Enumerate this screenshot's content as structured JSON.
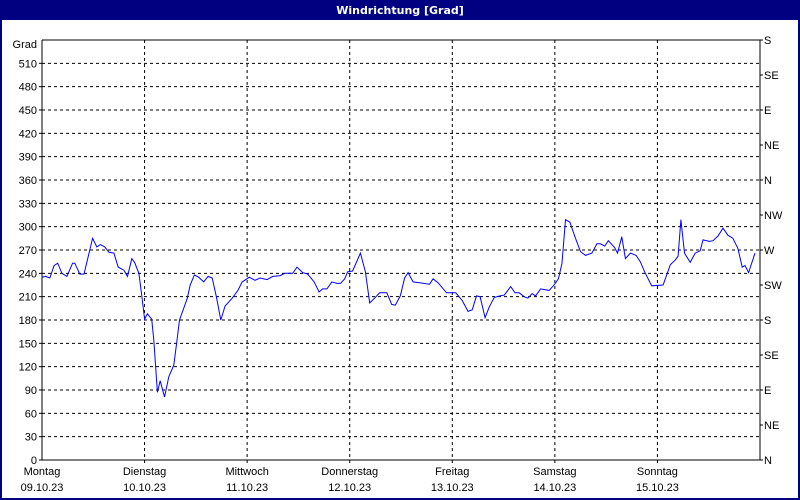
{
  "window": {
    "title": "Windrichtung [Grad]"
  },
  "colors": {
    "titlebar": "#000080",
    "series": "#0000ff",
    "grid": "#000000"
  },
  "chart_data": {
    "type": "line",
    "title": "Windrichtung [Grad]",
    "ylabel": "Grad",
    "ylim": [
      0,
      540
    ],
    "yticks": [
      0,
      30,
      60,
      90,
      120,
      150,
      180,
      210,
      240,
      270,
      300,
      330,
      360,
      390,
      420,
      450,
      480,
      510
    ],
    "right_axis": {
      "ticks": [
        {
          "value": 540,
          "label": "S"
        },
        {
          "value": 495,
          "label": "SE"
        },
        {
          "value": 450,
          "label": "E"
        },
        {
          "value": 405,
          "label": "NE"
        },
        {
          "value": 360,
          "label": "N"
        },
        {
          "value": 315,
          "label": "NW"
        },
        {
          "value": 270,
          "label": "W"
        },
        {
          "value": 225,
          "label": "SW"
        },
        {
          "value": 180,
          "label": "S"
        },
        {
          "value": 135,
          "label": "SE"
        },
        {
          "value": 90,
          "label": "E"
        },
        {
          "value": 45,
          "label": "NE"
        },
        {
          "value": 0,
          "label": "N"
        }
      ]
    },
    "xlim": [
      "09.10.23 00:00",
      "16.10.23 00:00"
    ],
    "xticks": [
      {
        "day": "Montag",
        "date": "09.10.23"
      },
      {
        "day": "Dienstag",
        "date": "10.10.23"
      },
      {
        "day": "Mittwoch",
        "date": "11.10.23"
      },
      {
        "day": "Donnerstag",
        "date": "12.10.23"
      },
      {
        "day": "Freitag",
        "date": "13.10.23"
      },
      {
        "day": "Samstag",
        "date": "14.10.23"
      },
      {
        "day": "Sonntag",
        "date": "15.10.23"
      }
    ],
    "grid": true,
    "series": [
      {
        "points": [
          [
            "09.10.23 00:00",
            235
          ],
          [
            "09.10.23 00:50",
            236
          ],
          [
            "09.10.23 01:50",
            234
          ],
          [
            "09.10.23 02:50",
            250
          ],
          [
            "09.10.23 03:40",
            253
          ],
          [
            "09.10.23 04:40",
            240
          ],
          [
            "09.10.23 05:50",
            236
          ],
          [
            "09.10.23 07:10",
            253
          ],
          [
            "09.10.23 07:40",
            253
          ],
          [
            "09.10.23 08:50",
            239
          ],
          [
            "09.10.23 09:50",
            239
          ],
          [
            "09.10.23 11:50",
            285
          ],
          [
            "09.10.23 12:50",
            274
          ],
          [
            "09.10.23 13:40",
            277
          ],
          [
            "09.10.23 14:40",
            274
          ],
          [
            "09.10.23 15:40",
            267
          ],
          [
            "09.10.23 16:50",
            266
          ],
          [
            "09.10.23 17:50",
            248
          ],
          [
            "09.10.23 19:10",
            244
          ],
          [
            "09.10.23 20:00",
            236
          ],
          [
            "09.10.23 21:00",
            259
          ],
          [
            "09.10.23 21:40",
            254
          ],
          [
            "09.10.23 22:40",
            240
          ],
          [
            "09.10.23 23:20",
            212
          ],
          [
            "10.10.23 00:00",
            181
          ],
          [
            "10.10.23 00:40",
            188
          ],
          [
            "10.10.23 01:40",
            181
          ],
          [
            "10.10.23 02:10",
            154
          ],
          [
            "10.10.23 03:00",
            87
          ],
          [
            "10.10.23 03:40",
            102
          ],
          [
            "10.10.23 04:40",
            81
          ],
          [
            "10.10.23 05:40",
            107
          ],
          [
            "10.10.23 06:50",
            122
          ],
          [
            "10.10.23 07:30",
            150
          ],
          [
            "10.10.23 08:10",
            180
          ],
          [
            "10.10.23 09:10",
            195
          ],
          [
            "10.10.23 10:00",
            208
          ],
          [
            "10.10.23 10:40",
            225
          ],
          [
            "10.10.23 11:40",
            238
          ],
          [
            "10.10.23 12:40",
            235
          ],
          [
            "10.10.23 13:50",
            229
          ],
          [
            "10.10.23 14:50",
            236
          ],
          [
            "10.10.23 15:50",
            234
          ],
          [
            "10.10.23 16:50",
            209
          ],
          [
            "10.10.23 17:50",
            180
          ],
          [
            "10.10.23 18:50",
            198
          ],
          [
            "10.10.23 20:30",
            208
          ],
          [
            "10.10.23 21:50",
            218
          ],
          [
            "10.10.23 22:50",
            229
          ],
          [
            "11.10.23 00:30",
            235
          ],
          [
            "11.10.23 01:50",
            231
          ],
          [
            "11.10.23 03:00",
            234
          ],
          [
            "11.10.23 04:40",
            232
          ],
          [
            "11.10.23 06:00",
            236
          ],
          [
            "11.10.23 07:40",
            237
          ],
          [
            "11.10.23 08:50",
            240
          ],
          [
            "11.10.23 10:40",
            240
          ],
          [
            "11.10.23 11:40",
            248
          ],
          [
            "11.10.23 13:00",
            241
          ],
          [
            "11.10.23 14:10",
            239
          ],
          [
            "11.10.23 15:40",
            229
          ],
          [
            "11.10.23 16:50",
            216
          ],
          [
            "11.10.23 17:40",
            220
          ],
          [
            "11.10.23 18:40",
            220
          ],
          [
            "11.10.23 19:50",
            229
          ],
          [
            "11.10.23 21:00",
            227
          ],
          [
            "11.10.23 21:50",
            227
          ],
          [
            "11.10.23 22:50",
            233
          ],
          [
            "11.10.23 23:30",
            242
          ],
          [
            "12.10.23 00:40",
            243
          ],
          [
            "12.10.23 02:30",
            266
          ],
          [
            "12.10.23 03:40",
            242
          ],
          [
            "12.10.23 04:40",
            202
          ],
          [
            "12.10.23 05:50",
            208
          ],
          [
            "12.10.23 07:00",
            215
          ],
          [
            "12.10.23 08:40",
            215
          ],
          [
            "12.10.23 09:50",
            200
          ],
          [
            "12.10.23 10:40",
            199
          ],
          [
            "12.10.23 11:50",
            211
          ],
          [
            "12.10.23 12:50",
            234
          ],
          [
            "12.10.23 13:40",
            241
          ],
          [
            "12.10.23 14:50",
            229
          ],
          [
            "12.10.23 16:20",
            228
          ],
          [
            "12.10.23 18:40",
            226
          ],
          [
            "12.10.23 19:30",
            233
          ],
          [
            "12.10.23 20:40",
            228
          ],
          [
            "12.10.23 22:40",
            215
          ],
          [
            "13.10.23 00:50",
            215
          ],
          [
            "13.10.23 02:20",
            205
          ],
          [
            "13.10.23 03:40",
            191
          ],
          [
            "13.10.23 04:40",
            193
          ],
          [
            "13.10.23 05:40",
            211
          ],
          [
            "13.10.23 06:30",
            210
          ],
          [
            "13.10.23 07:40",
            183
          ],
          [
            "13.10.23 08:40",
            197
          ],
          [
            "13.10.23 09:50",
            209
          ],
          [
            "13.10.23 11:10",
            211
          ],
          [
            "13.10.23 12:10",
            212
          ],
          [
            "13.10.23 13:40",
            223
          ],
          [
            "13.10.23 14:40",
            215
          ],
          [
            "13.10.23 15:40",
            215
          ],
          [
            "13.10.23 16:50",
            210
          ],
          [
            "13.10.23 17:40",
            208
          ],
          [
            "13.10.23 18:40",
            214
          ],
          [
            "13.10.23 19:30",
            211
          ],
          [
            "13.10.23 20:40",
            220
          ],
          [
            "13.10.23 22:40",
            218
          ],
          [
            "13.10.23 23:50",
            225
          ],
          [
            "14.10.23 00:50",
            233
          ],
          [
            "14.10.23 01:40",
            253
          ],
          [
            "14.10.23 02:30",
            309
          ],
          [
            "14.10.23 03:30",
            306
          ],
          [
            "14.10.23 04:50",
            285
          ],
          [
            "14.10.23 06:00",
            268
          ],
          [
            "14.10.23 07:10",
            263
          ],
          [
            "14.10.23 08:40",
            266
          ],
          [
            "14.10.23 09:50",
            278
          ],
          [
            "14.10.23 10:40",
            278
          ],
          [
            "14.10.23 11:40",
            275
          ],
          [
            "14.10.23 12:30",
            282
          ],
          [
            "14.10.23 14:00",
            273
          ],
          [
            "14.10.23 14:40",
            266
          ],
          [
            "14.10.23 15:40",
            287
          ],
          [
            "14.10.23 16:30",
            259
          ],
          [
            "14.10.23 17:40",
            266
          ],
          [
            "14.10.23 19:00",
            263
          ],
          [
            "14.10.23 20:00",
            255
          ],
          [
            "14.10.23 21:00",
            242
          ],
          [
            "14.10.23 22:40",
            224
          ],
          [
            "15.10.23 01:20",
            225
          ],
          [
            "15.10.23 03:00",
            251
          ],
          [
            "15.10.23 04:10",
            257
          ],
          [
            "15.10.23 04:50",
            262
          ],
          [
            "15.10.23 05:30",
            309
          ],
          [
            "15.10.23 06:20",
            266
          ],
          [
            "15.10.23 07:40",
            254
          ],
          [
            "15.10.23 08:50",
            266
          ],
          [
            "15.10.23 10:00",
            269
          ],
          [
            "15.10.23 10:40",
            283
          ],
          [
            "15.10.23 12:10",
            281
          ],
          [
            "15.10.23 13:00",
            282
          ],
          [
            "15.10.23 14:10",
            288
          ],
          [
            "15.10.23 15:20",
            298
          ],
          [
            "15.10.23 16:30",
            289
          ],
          [
            "15.10.23 17:40",
            285
          ],
          [
            "15.10.23 18:50",
            272
          ],
          [
            "15.10.23 19:50",
            248
          ],
          [
            "15.10.23 20:30",
            250
          ],
          [
            "15.10.23 21:20",
            241
          ],
          [
            "15.10.23 22:50",
            266
          ]
        ]
      }
    ]
  }
}
